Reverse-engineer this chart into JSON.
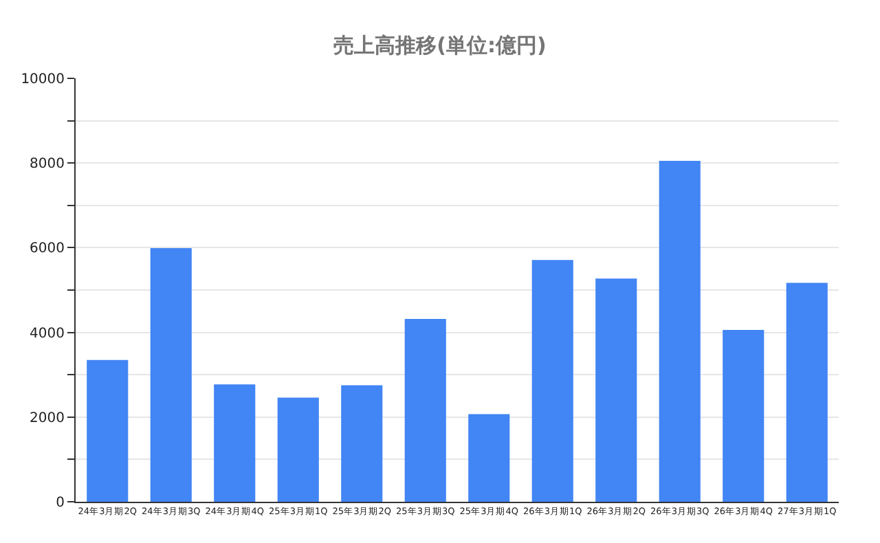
{
  "chart_data": {
    "type": "bar",
    "title": "売上高推移(単位:億円)",
    "categories": [
      "24年3月期2Q",
      "24年3月期3Q",
      "24年3月期4Q",
      "25年3月期1Q",
      "25年3月期2Q",
      "25年3月期3Q",
      "25年3月期4Q",
      "26年3月期1Q",
      "26年3月期2Q",
      "26年3月期3Q",
      "26年3月期4Q",
      "27年3月期1Q"
    ],
    "values": [
      3350,
      5990,
      2770,
      2460,
      2750,
      4320,
      2070,
      5710,
      5270,
      8050,
      4060,
      5170
    ],
    "color": "#4285f4",
    "ylim": [
      0,
      10000
    ],
    "yticks": [
      0,
      {
        "value": 1000,
        "label": null
      },
      2000,
      {
        "value": 3000,
        "label": null
      },
      4000,
      {
        "value": 5000,
        "label": null
      },
      6000,
      {
        "value": 7000,
        "label": null
      },
      8000,
      {
        "value": 9000,
        "label": null
      },
      10000
    ],
    "grid": "y"
  }
}
